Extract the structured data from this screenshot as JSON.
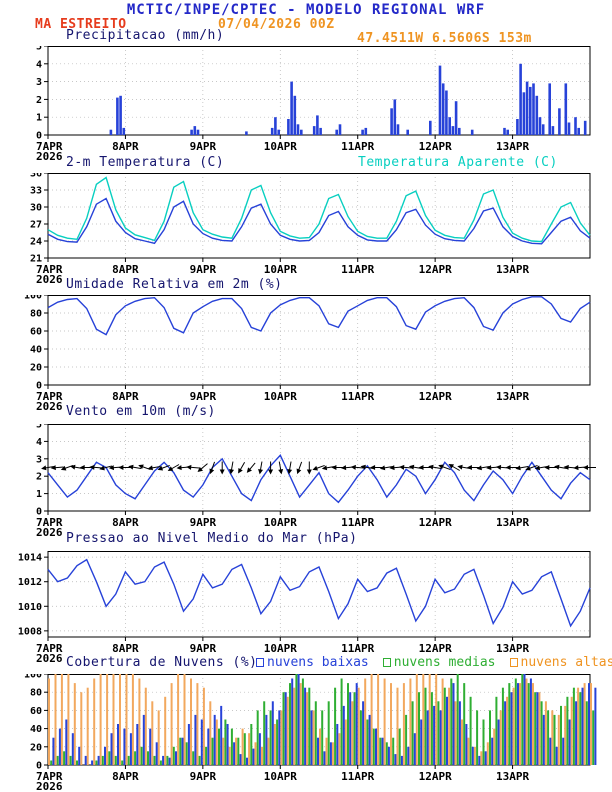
{
  "header": {
    "title": "MCTIC/INPE/CPTEC - MODELO REGIONAL WRF",
    "station": "MA ESTREITO",
    "run": "07/04/2026 00Z",
    "location": "47.4511W 6.5606S 153m"
  },
  "colors": {
    "header_blue": "#2328c8",
    "title_navy": "#15156e",
    "station_red": "#e63c1e",
    "orange": "#ef9422",
    "blue": "#2742d8",
    "cyan": "#08cfc0",
    "green": "#2fae33",
    "orange_bar": "#f2a85e"
  },
  "x_axis": {
    "total_hours": 168,
    "tick_hours": [
      0,
      24,
      48,
      72,
      96,
      120,
      144
    ],
    "tick_labels": [
      "7APR",
      "8APR",
      "9APR",
      "10APR",
      "11APR",
      "12APR",
      "13APR"
    ],
    "year_label": "2026"
  },
  "chart_data": [
    {
      "id": "precip",
      "type": "bar",
      "title": "Precipitacao (mm/h)",
      "ylabel": "mm/h",
      "ylim": [
        0,
        5
      ],
      "yticks": [
        0,
        1,
        2,
        3,
        4,
        5
      ],
      "step_hours": 1,
      "values": [
        0,
        0,
        0,
        0,
        0,
        0,
        0,
        0,
        0,
        0,
        0,
        0,
        0,
        0,
        0,
        0,
        0,
        0,
        0,
        0.3,
        0,
        2.1,
        2.2,
        0.4,
        0,
        0,
        0,
        0,
        0,
        0,
        0,
        0,
        0,
        0,
        0,
        0,
        0,
        0,
        0,
        0,
        0,
        0,
        0,
        0,
        0.3,
        0.5,
        0.3,
        0,
        0,
        0,
        0,
        0,
        0,
        0,
        0,
        0,
        0,
        0,
        0,
        0,
        0,
        0.2,
        0,
        0,
        0,
        0,
        0,
        0,
        0,
        0.4,
        1.0,
        0.3,
        0,
        0,
        0.9,
        3.0,
        2.2,
        0.6,
        0.3,
        0,
        0,
        0,
        0.5,
        1.1,
        0.4,
        0,
        0,
        0,
        0,
        0.3,
        0.6,
        0,
        0,
        0,
        0,
        0,
        0,
        0.3,
        0.4,
        0,
        0,
        0,
        0,
        0,
        0,
        0,
        1.5,
        2.0,
        0.6,
        0,
        0,
        0.3,
        0,
        0,
        0,
        0,
        0,
        0,
        0.8,
        0,
        0,
        3.9,
        2.9,
        2.5,
        1.0,
        0.5,
        1.9,
        0.4,
        0,
        0,
        0,
        0.3,
        0,
        0,
        0,
        0,
        0,
        0,
        0,
        0,
        0,
        0.4,
        0.3,
        0,
        0,
        0.9,
        4.0,
        2.4,
        3.0,
        2.7,
        2.9,
        2.2,
        1.0,
        0.6,
        0,
        2.9,
        0.5,
        0,
        1.5,
        0,
        2.9,
        0.7,
        0,
        1.0,
        0.4,
        0,
        0.8,
        0
      ]
    },
    {
      "id": "temp",
      "type": "line",
      "title": "2-m Temperatura (C)",
      "legend_right": "Temperatura Aparente (C)",
      "ylim": [
        21,
        36
      ],
      "yticks": [
        21,
        24,
        27,
        30,
        33,
        36
      ],
      "step_hours": 3,
      "series": [
        {
          "name": "2-m Temperatura (C)",
          "color_key": "blue",
          "values": [
            25.2,
            24.3,
            23.9,
            23.8,
            26.5,
            30.5,
            31.5,
            27.5,
            25.5,
            24.4,
            24.0,
            23.6,
            26.0,
            30.0,
            31.0,
            27.0,
            25.3,
            24.5,
            24.1,
            24.0,
            26.5,
            29.8,
            30.5,
            27.0,
            25.0,
            24.3,
            24.0,
            24.1,
            25.5,
            28.5,
            29.2,
            26.5,
            25.0,
            24.2,
            24.0,
            24.0,
            26.0,
            29.0,
            29.6,
            26.8,
            25.2,
            24.4,
            24.1,
            24.0,
            26.2,
            29.3,
            29.8,
            26.5,
            24.8,
            24.0,
            23.6,
            23.5,
            25.5,
            27.5,
            28.2,
            25.8,
            24.5
          ]
        },
        {
          "name": "Temperatura Aparente (C)",
          "color_key": "cyan",
          "values": [
            26.0,
            25.0,
            24.5,
            24.3,
            28.0,
            34.0,
            35.2,
            29.5,
            26.3,
            25.1,
            24.6,
            24.1,
            27.5,
            33.5,
            34.5,
            29.0,
            26.0,
            25.2,
            24.7,
            24.5,
            28.0,
            33.0,
            33.8,
            29.0,
            25.7,
            24.9,
            24.5,
            24.6,
            27.0,
            31.5,
            32.2,
            28.3,
            25.7,
            24.8,
            24.5,
            24.5,
            27.5,
            32.0,
            32.8,
            28.5,
            25.9,
            25.0,
            24.6,
            24.5,
            27.7,
            32.3,
            33.0,
            28.2,
            25.4,
            24.5,
            24.0,
            23.9,
            27.0,
            30.0,
            30.8,
            27.2,
            25.0
          ]
        }
      ]
    },
    {
      "id": "rh",
      "type": "line",
      "title": "Umidade Relativa em 2m (%)",
      "ylim": [
        0,
        100
      ],
      "yticks": [
        0,
        20,
        40,
        60,
        80,
        100
      ],
      "step_hours": 3,
      "series": [
        {
          "name": "Umidade Relativa em 2m (%)",
          "color_key": "blue",
          "values": [
            86,
            92,
            95,
            96,
            85,
            62,
            56,
            78,
            88,
            93,
            96,
            97,
            86,
            63,
            58,
            80,
            87,
            93,
            96,
            96,
            85,
            64,
            60,
            80,
            89,
            94,
            97,
            97,
            88,
            68,
            64,
            82,
            88,
            94,
            97,
            97,
            87,
            66,
            62,
            81,
            88,
            93,
            96,
            97,
            86,
            65,
            61,
            80,
            90,
            95,
            98,
            98,
            90,
            74,
            70,
            85,
            92
          ]
        }
      ]
    },
    {
      "id": "wind",
      "type": "wind",
      "title": "Vento em 10m (m/s)",
      "ylim": [
        0,
        5
      ],
      "yticks": [
        0,
        1,
        2,
        3,
        4,
        5
      ],
      "step_hours": 3,
      "arrow_y_value": 2.5,
      "speed": [
        2.2,
        1.5,
        0.8,
        1.2,
        2.0,
        2.8,
        2.5,
        1.5,
        1.0,
        0.7,
        1.5,
        2.3,
        2.8,
        2.2,
        1.2,
        0.8,
        1.5,
        2.5,
        3.0,
        2.0,
        1.0,
        0.6,
        1.8,
        2.6,
        3.2,
        2.0,
        0.8,
        1.5,
        2.2,
        1.0,
        0.5,
        1.2,
        2.0,
        2.6,
        1.8,
        0.8,
        1.5,
        2.4,
        2.0,
        1.0,
        1.8,
        2.8,
        2.2,
        1.2,
        0.6,
        1.5,
        2.3,
        1.8,
        1.0,
        2.0,
        2.8,
        2.0,
        1.2,
        0.7,
        1.6,
        2.2,
        1.8
      ],
      "dir_deg": [
        190,
        185,
        200,
        170,
        180,
        175,
        195,
        185,
        180,
        170,
        160,
        190,
        200,
        210,
        185,
        175,
        220,
        250,
        270,
        260,
        240,
        230,
        260,
        270,
        280,
        260,
        250,
        270,
        200,
        190,
        180,
        185,
        175,
        170,
        180,
        190,
        185,
        175,
        170,
        180,
        170,
        160,
        150,
        170,
        180,
        190,
        185,
        175,
        180,
        190,
        200,
        190,
        180,
        170,
        175,
        185,
        180
      ]
    },
    {
      "id": "pres",
      "type": "line",
      "title": "Pressao ao Nivel Medio do Mar (hPa)",
      "ylim": [
        1007.5,
        1014.5
      ],
      "yticks": [
        1008,
        1010,
        1012,
        1014
      ],
      "step_hours": 3,
      "series": [
        {
          "name": "Pressao ao Nivel Medio do Mar (hPa)",
          "color_key": "blue",
          "values": [
            1013.0,
            1012.0,
            1012.3,
            1013.3,
            1013.8,
            1012.0,
            1010.0,
            1011.0,
            1012.8,
            1011.8,
            1012.0,
            1013.2,
            1013.6,
            1011.8,
            1009.6,
            1010.6,
            1012.6,
            1011.5,
            1011.8,
            1013.0,
            1013.4,
            1011.5,
            1009.4,
            1010.4,
            1012.4,
            1011.3,
            1011.6,
            1012.8,
            1013.2,
            1011.2,
            1009.0,
            1010.2,
            1012.2,
            1011.2,
            1011.5,
            1012.7,
            1013.1,
            1011.0,
            1008.8,
            1010.0,
            1012.2,
            1011.1,
            1011.4,
            1012.6,
            1013.0,
            1010.9,
            1008.6,
            1009.9,
            1012.0,
            1011.0,
            1011.3,
            1012.4,
            1012.8,
            1010.6,
            1008.4,
            1009.6,
            1011.5
          ]
        }
      ]
    },
    {
      "id": "clouds",
      "type": "multibar",
      "title": "Cobertura de Nuvens (%)",
      "ylim": [
        0,
        100
      ],
      "yticks": [
        0,
        20,
        40,
        60,
        80,
        100
      ],
      "step_hours": 2,
      "legend": [
        {
          "label": "nuvens baixas",
          "color_key": "blue"
        },
        {
          "label": "nuvens medias",
          "color_key": "green"
        },
        {
          "label": "nuvens altas",
          "color_key": "orange"
        }
      ],
      "series": [
        {
          "name": "nuvens altas",
          "color_key": "orange_bar",
          "values": [
            95,
            100,
            100,
            100,
            90,
            80,
            85,
            95,
            100,
            100,
            100,
            100,
            100,
            100,
            95,
            85,
            70,
            60,
            75,
            90,
            100,
            100,
            95,
            90,
            85,
            70,
            50,
            30,
            20,
            30,
            40,
            35,
            25,
            20,
            30,
            45,
            60,
            75,
            85,
            90,
            80,
            60,
            40,
            30,
            25,
            35,
            50,
            70,
            85,
            95,
            100,
            100,
            95,
            90,
            85,
            90,
            95,
            100,
            100,
            100,
            100,
            95,
            85,
            70,
            50,
            30,
            20,
            15,
            25,
            40,
            60,
            75,
            85,
            90,
            95,
            90,
            80,
            70,
            60,
            55,
            65,
            75,
            85,
            90,
            90
          ]
        },
        {
          "name": "nuvens medias",
          "color_key": "green",
          "values": [
            5,
            10,
            15,
            10,
            5,
            0,
            0,
            5,
            10,
            15,
            10,
            5,
            10,
            15,
            20,
            15,
            10,
            5,
            10,
            20,
            30,
            25,
            15,
            10,
            20,
            30,
            40,
            50,
            40,
            30,
            35,
            45,
            60,
            70,
            60,
            50,
            80,
            90,
            100,
            95,
            85,
            70,
            60,
            70,
            85,
            95,
            90,
            80,
            60,
            50,
            40,
            30,
            25,
            30,
            40,
            55,
            70,
            80,
            85,
            80,
            70,
            85,
            95,
            100,
            90,
            75,
            60,
            50,
            60,
            75,
            85,
            90,
            95,
            100,
            90,
            80,
            70,
            60,
            55,
            65,
            75,
            85,
            80,
            70,
            60
          ]
        },
        {
          "name": "nuvens baixas",
          "color_key": "blue",
          "values": [
            30,
            40,
            50,
            35,
            20,
            10,
            5,
            10,
            20,
            35,
            45,
            40,
            35,
            45,
            55,
            40,
            25,
            10,
            8,
            15,
            30,
            45,
            55,
            50,
            40,
            55,
            65,
            45,
            25,
            12,
            8,
            18,
            35,
            55,
            70,
            60,
            80,
            95,
            100,
            85,
            60,
            30,
            15,
            25,
            45,
            65,
            80,
            90,
            70,
            55,
            40,
            30,
            20,
            12,
            10,
            20,
            35,
            50,
            60,
            65,
            60,
            75,
            90,
            70,
            45,
            20,
            10,
            15,
            30,
            50,
            70,
            80,
            90,
            100,
            95,
            80,
            55,
            30,
            20,
            30,
            50,
            70,
            85,
            90,
            85
          ]
        }
      ]
    }
  ]
}
